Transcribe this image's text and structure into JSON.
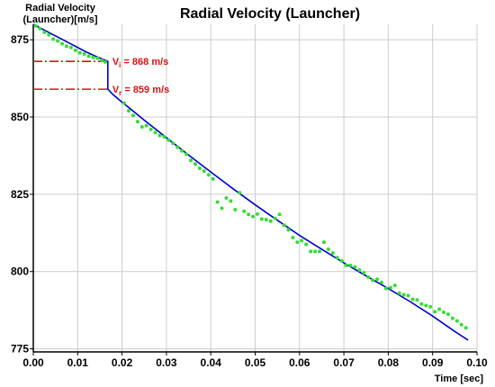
{
  "chart_data": {
    "type": "line",
    "title": "Radial Velocity (Launcher)",
    "ylabel_lines": [
      "Radial Velocity",
      "(Launcher)[m/s]"
    ],
    "xlabel": "Time [sec]",
    "xlim": [
      0.0,
      0.1
    ],
    "ylim": [
      774,
      880
    ],
    "xticks": [
      0.0,
      0.01,
      0.02,
      0.03,
      0.04,
      0.05,
      0.06,
      0.07,
      0.08,
      0.09
    ],
    "xtick_labels": [
      "0.00",
      "0.01",
      "0.02",
      "0.03",
      "0.04",
      "0.05",
      "0.06",
      "0.07",
      "0.08",
      "0.09"
    ],
    "last_xtick_label": "0.10",
    "yticks": [
      775,
      800,
      825,
      850,
      875
    ],
    "ytick_labels": [
      "775",
      "800",
      "825",
      "850",
      "875"
    ],
    "grid": true,
    "colors": {
      "fit_line": "#0000cc",
      "points": "#33dd33",
      "annotation": "#dd1111",
      "grid": "#cccccc"
    },
    "series": [
      {
        "style": "line",
        "x": [
          0.0,
          0.002,
          0.004,
          0.006,
          0.008,
          0.01,
          0.012,
          0.014,
          0.0168,
          0.0168,
          0.018,
          0.02,
          0.022,
          0.025,
          0.028,
          0.03,
          0.035,
          0.04,
          0.045,
          0.05,
          0.055,
          0.06,
          0.065,
          0.07,
          0.075,
          0.08,
          0.085,
          0.09,
          0.095,
          0.098
        ],
        "y": [
          880.0,
          878.5,
          877.0,
          875.5,
          874.0,
          872.5,
          871.0,
          869.7,
          868.0,
          859.0,
          857.2,
          854.8,
          852.5,
          849.0,
          845.6,
          843.3,
          837.7,
          832.2,
          826.8,
          821.6,
          816.6,
          811.7,
          807.2,
          802.8,
          798.6,
          794.5,
          790.2,
          785.6,
          780.6,
          777.8
        ]
      },
      {
        "style": "scatter",
        "x": [
          0.0005,
          0.0015,
          0.0025,
          0.0035,
          0.0045,
          0.0055,
          0.0065,
          0.0075,
          0.0085,
          0.0095,
          0.0105,
          0.0115,
          0.0125,
          0.0135,
          0.0145,
          0.0155,
          0.0162,
          0.0205,
          0.0215,
          0.0225,
          0.0235,
          0.0245,
          0.0255,
          0.0265,
          0.0275,
          0.0285,
          0.0295,
          0.0305,
          0.0315,
          0.0325,
          0.0335,
          0.0345,
          0.0355,
          0.0365,
          0.0375,
          0.0385,
          0.0395,
          0.0405,
          0.0415,
          0.0425,
          0.0435,
          0.0445,
          0.0455,
          0.0465,
          0.0475,
          0.0485,
          0.0495,
          0.0505,
          0.0515,
          0.0525,
          0.0535,
          0.0545,
          0.0555,
          0.0565,
          0.0575,
          0.0585,
          0.0595,
          0.0605,
          0.0615,
          0.0625,
          0.0635,
          0.0645,
          0.0655,
          0.0665,
          0.0675,
          0.0685,
          0.0695,
          0.0705,
          0.0715,
          0.0725,
          0.0735,
          0.0745,
          0.0755,
          0.0765,
          0.0775,
          0.0785,
          0.0795,
          0.0805,
          0.0815,
          0.0825,
          0.0835,
          0.0845,
          0.0855,
          0.0865,
          0.0875,
          0.0885,
          0.0895,
          0.0905,
          0.0915,
          0.0925,
          0.0935,
          0.0945,
          0.0955,
          0.0965,
          0.0975
        ],
        "y": [
          879.5,
          878.6,
          877.4,
          876.6,
          875.2,
          874.6,
          873.7,
          872.9,
          872.5,
          871.6,
          870.8,
          870.4,
          869.7,
          869.3,
          869.0,
          868.3,
          867.8,
          854.5,
          852.0,
          850.5,
          848.5,
          846.8,
          847.2,
          846.0,
          845.0,
          844.0,
          843.6,
          842.5,
          841.5,
          840.2,
          839.0,
          838.0,
          836.0,
          834.8,
          833.4,
          832.5,
          831.3,
          830.0,
          822.5,
          820.5,
          823.8,
          822.8,
          820.0,
          825.5,
          819.5,
          818.5,
          817.8,
          818.6,
          817.0,
          816.8,
          816.3,
          817.2,
          818.5,
          815.0,
          813.5,
          811.0,
          809.5,
          810.0,
          808.8,
          806.5,
          806.5,
          806.5,
          809.5,
          807.2,
          806.0,
          804.5,
          803.5,
          802.0,
          802.0,
          801.5,
          800.5,
          799.6,
          798.2,
          797.2,
          797.5,
          796.5,
          794.5,
          794.8,
          795.5,
          793.0,
          792.5,
          792.2,
          791.0,
          790.8,
          789.5,
          789.0,
          788.6,
          787.0,
          787.8,
          786.8,
          786.2,
          784.9,
          784.0,
          782.8,
          781.8
        ]
      }
    ],
    "annotations": [
      {
        "subscript": "i",
        "value": 868,
        "unit": "m/s",
        "x": 0.0168
      },
      {
        "subscript": "r",
        "value": 859,
        "unit": "m/s",
        "x": 0.0168
      }
    ]
  }
}
